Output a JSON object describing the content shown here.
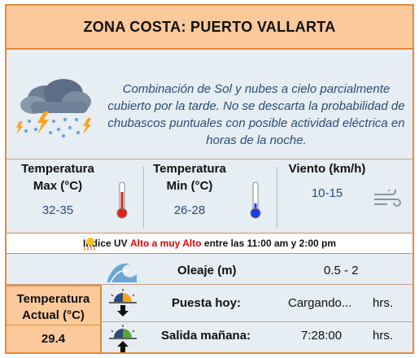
{
  "title": "ZONA COSTA: PUERTO VALLARTA",
  "forecast": {
    "icon": "storm-cloud-icon",
    "text": "Combinación de Sol y nubes a cielo parcialmente cubierto por la tarde. No se descarta la probabilidad de chubascos puntuales con posible actividad eléctrica en horas de la noche."
  },
  "metrics": {
    "max": {
      "label": "Temperatura Max (°C)",
      "value": "32-35",
      "icon": "thermometer-hot-icon"
    },
    "min": {
      "label": "Temperatura Min (°C)",
      "value": "26-28",
      "icon": "thermometer-cold-icon"
    },
    "wind": {
      "label": "Viento (km/h)",
      "value": "10-15",
      "icon": "wind-icon"
    }
  },
  "uv": {
    "prefix": "Indice UV",
    "level": "Alto a muy Alto",
    "suffix": "entre las 11:00 am y 2:00 pm",
    "icon": "sun-uv-icon"
  },
  "oleaje": {
    "label": "Oleaje (m)",
    "value": "0.5 - 2",
    "icon": "wave-icon"
  },
  "current": {
    "label": "Temperatura Actual (°C)",
    "value": "29.4"
  },
  "sunset": {
    "label": "Puesta hoy:",
    "value": "Cargando...",
    "unit": "hrs.",
    "icon": "sunset-icon"
  },
  "sunrise": {
    "label": "Salida mañana:",
    "value": "7:28:00",
    "unit": "hrs.",
    "icon": "sunrise-icon"
  },
  "colors": {
    "border": "#e58a3c",
    "header": "#fbc99a",
    "panel": "#e6edf3",
    "text_blue": "#2b4c78",
    "uv_red": "#e00000"
  }
}
